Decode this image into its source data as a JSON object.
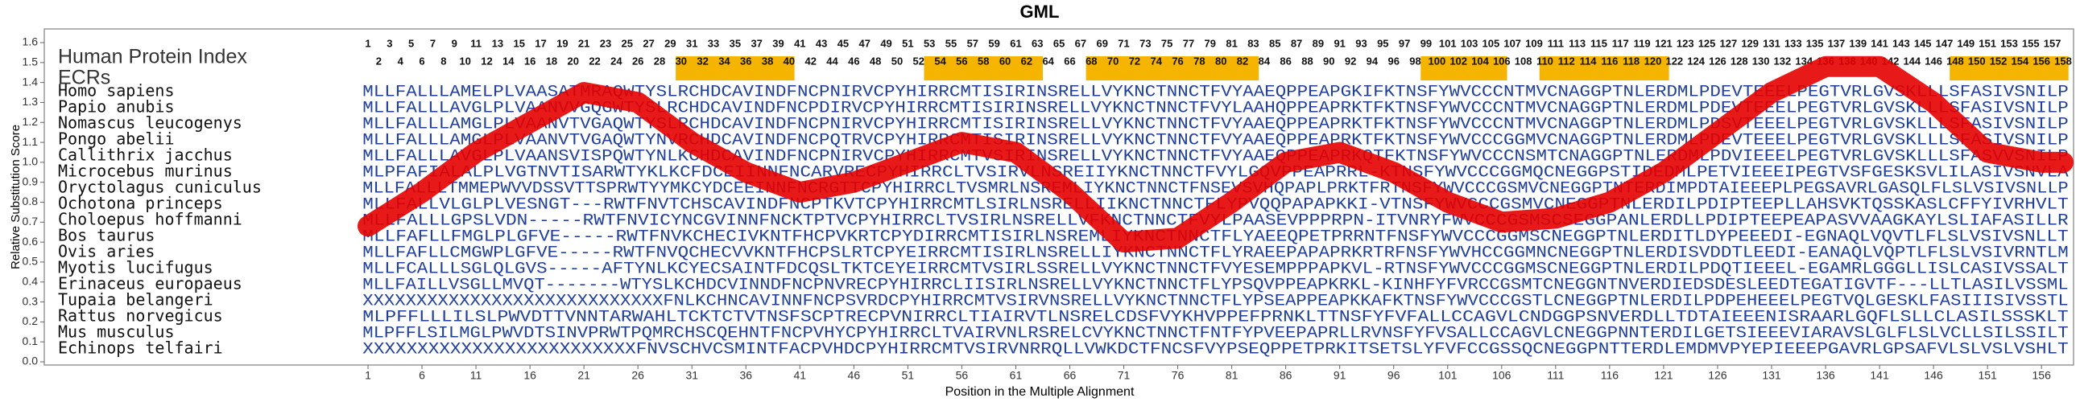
{
  "chart_data": {
    "type": "line",
    "title": "GML",
    "xlabel": "Position in the Multiple Alignment",
    "ylabel": "Relative Substitution Score",
    "index_label": "Human Protein Index",
    "ecr_label": "ECRs",
    "color": "#e60000",
    "ecr_color": "#f5b400",
    "sequence_color": "#1f3f99",
    "xlim": [
      1,
      158
    ],
    "ylim": [
      0,
      1.6
    ],
    "xticks": [
      1,
      6,
      11,
      16,
      21,
      26,
      31,
      36,
      41,
      46,
      51,
      56,
      61,
      66,
      71,
      76,
      81,
      86,
      91,
      96,
      101,
      106,
      111,
      116,
      121,
      126,
      131,
      136,
      141,
      146,
      151,
      156
    ],
    "yticks": [
      {
        "value": 0,
        "label": "0.0"
      },
      0.1,
      0.2,
      0.3,
      0.4,
      0.5,
      0.6,
      0.7,
      0.8,
      0.9,
      {
        "value": 1,
        "label": "1.0"
      },
      1.1,
      1.2,
      1.3,
      1.4,
      1.5,
      1.6
    ],
    "x": [
      1,
      6,
      11,
      16,
      21,
      26,
      31,
      36,
      41,
      46,
      51,
      56,
      61,
      66,
      71,
      76,
      81,
      86,
      91,
      96,
      101,
      106,
      111,
      116,
      121,
      126,
      131,
      136,
      141,
      146,
      151,
      156,
      158
    ],
    "values": [
      0.68,
      0.85,
      1.05,
      1.2,
      1.35,
      1.3,
      1.1,
      0.95,
      0.85,
      0.9,
      1.0,
      1.1,
      1.05,
      0.85,
      0.6,
      0.62,
      0.8,
      1.0,
      1.05,
      0.95,
      0.8,
      0.7,
      0.72,
      0.8,
      0.95,
      1.15,
      1.35,
      1.48,
      1.48,
      1.3,
      1.05,
      1.0,
      1.0
    ],
    "ecrs": [
      [
        30,
        40
      ],
      [
        53,
        63
      ],
      [
        68,
        83
      ],
      [
        99,
        106
      ],
      [
        110,
        121
      ],
      [
        148,
        158
      ]
    ],
    "column_numbers": [
      1,
      2,
      3,
      4,
      5,
      6,
      7,
      8,
      9,
      10,
      11,
      12,
      13,
      14,
      15,
      16,
      17,
      18,
      19,
      20,
      21,
      22,
      23,
      24,
      25,
      26,
      27,
      28,
      29,
      30,
      31,
      32,
      33,
      34,
      35,
      36,
      37,
      38,
      39,
      40,
      41,
      42,
      43,
      44,
      45,
      46,
      47,
      48,
      49,
      50,
      51,
      52,
      53,
      54,
      55,
      56,
      57,
      58,
      59,
      60,
      61,
      62,
      63,
      64,
      65,
      66,
      67,
      68,
      69,
      70,
      71,
      72,
      73,
      74,
      75,
      76,
      77,
      78,
      79,
      80,
      81,
      82,
      83,
      84,
      85,
      86,
      87,
      88,
      89,
      90,
      91,
      92,
      93,
      94,
      95,
      96,
      97,
      98,
      99,
      100,
      101,
      102,
      103,
      104,
      105,
      106,
      107,
      108,
      109,
      110,
      111,
      112,
      113,
      114,
      115,
      116,
      117,
      118,
      119,
      120,
      121,
      122,
      123,
      124,
      125,
      126,
      127,
      128,
      129,
      130,
      131,
      132,
      133,
      134,
      135,
      136,
      137,
      138,
      139,
      140,
      141,
      142,
      143,
      144,
      145,
      146,
      147,
      148,
      149,
      150,
      151,
      152,
      153,
      154,
      155,
      156,
      157,
      158
    ],
    "alignment": [
      {
        "species": "Homo sapiens",
        "sequence": "MLLFALLLAMELPLVAASATMRAQWTYSLRCHDCAVINDFNCPNIRVCPYHIRRCMTISIRINSRELLVYKNCTNNCTFVYAAEQPPEAPGKIFKTNSFYWVCCCNTMVCNAGGPTNLERDMLPDEVTEEELPEGTVRLGVSKLLLSFASIVSNILP"
      },
      {
        "species": "Papio anubis",
        "sequence": "MLLFALLLAVGLPLVAANVVGQGWTYSLRCHDCAVINDFNCPDIRVCPYHIRRCMTISIRINSRELLVYKNCTNNCTFVYLAAHQPPEAPRKTFKTNSFYWVCCCNTMVCNAGGPTNLERDMLPDEVTEEELPEGTVRLGVSKLLLSFASIVSNILP"
      },
      {
        "species": "Nomascus leucogenys",
        "sequence": "MLLFALLLAMGLPLVAANVTVGAQWTYSLRCHDCAVINDFNCPNIRVCPYHIRRCMTISIRINSRELLVYKNCTNNCTFVYAAEQPPEAPRKTFKTNSFYWVCCCNTMVCNAGGPTNLERDMLPDSVTEEELPEGTVRLGVSKLLLSFASIVSNILP"
      },
      {
        "species": "Pongo abelii",
        "sequence": "MLLFALLLAMGLPLVAANVTVGAQWTYNVRCHDCAVINDFNCPQTRVCPYHIRRCMTISIRINSRELLVYKNCTNNCTFVYAAEQPPEAPRKTFKTNSFYWVCCCGGMVCNAGGPTNLERDMLPDEVTEEELPEGTVRLGVSKLLLSFASIVSNILP"
      },
      {
        "species": "Callithrix jacchus",
        "sequence": "MLLFALLLAVGLPLVAANSVISPQWTYNLKCHDCAVINDFNCPNIRVCPYHIRRCMTVSIRINSRELLVYKNCTNNCTFVYAAEQPPEAPRKQTFKTNSFYWVCCCNSMTCNAGGPTNLERDMLPDVIEEELPEGTVRLGVSKLLLSFASVVSNILP"
      },
      {
        "species": "Microcebus murinus",
        "sequence": "MLPFAFIALALPLVGTNVTISARWTYKLKCFDCEIINNFNCARVRECPYHIRRCLTVSIRVLNSREIIYKNCTNNCTFVYLGQVPPEAPRRL-KTNSFYWVCCCGGMQCNEGGPSTIDEDMLPETVIEEEIPEGTVSFGESKSVLILASIVSNVLA"
      },
      {
        "species": "Oryctolagus cuniculus",
        "sequence": "MLLFALLLTMMEPWVVDSSVTTSPRWTYYMKCYDCEEINNFNCRGTTCPYHIRRCLTVSMRLNSREMLIYKNCTNNCTFNSEVSVHQPAPLPRKTFRTNSFYWVCCCGSMVCNEGGPTNTERDIMPDTAIEEEPLPEGSAVRLGASQLFLSLVSIVSNLLP"
      },
      {
        "species": "Ochotona princeps",
        "sequence": "MLLFALLVLGLPLVESNGT---RWTFNVTCHSCAVINDFNCPTKVTCPYHIRRCMTLSIRLNSRELLIIKNCTNNCTFLYPVQQPAPAPKKI-VTNSFYWVCCCGSMVCNEGGPTNLERDILPDIPTEEPLLAHSVKTQSSKASLCFFYIVRHVLT"
      },
      {
        "species": "Choloepus hoffmanni",
        "sequence": "MLLFALLLGPSLVDN-----RWTFNVICYNCGVINNFNCKTPTVCPYHIRRCLTVSIRLNSRELLVFKNCTNNCTFVYLPAASEVPPPRPN-ITVNRYFWVCCCGSMSCSEGGPANLERDLLPDIPTEEPEAPASVVAAGKAYLSLIAFASILLR"
      },
      {
        "species": "Bos taurus",
        "sequence": "MLLFAFLLFMGLPLGFVE-----RWTFNVKCHECIVKNTFHCPVKRTCPYDIRRCMTISIRLNSREMLIYKNCTNNCTFLYAEEQPETPRRNTFNSFYWVCCCGGMSCNEGGPTNLERDITLDYPEEEDI-EGNAQLVQVTLFLSLVSIVSNLLT"
      },
      {
        "species": "Ovis aries",
        "sequence": "MLLFAFLLCMGWPLGFVE-----RWTFNVQCHECVVKNTFHCPSLRTCPYEIRRCMTISIRLNSRELLIYKNCTNNCTFLYRAEEPAPAPRKRTRFNSFYWVHCCGGMNCNEGGPTNLERDISVDDTLEEDI-EANAQLVQPTLFLSLVSIVRNTLM"
      },
      {
        "species": "Myotis lucifugus",
        "sequence": "MLLFCALLLSGLQLGVS-----AFTYNLKCYECSAINTFDCQSLTKTCEYEIRRCMTVSIRLSSRELLVYKNCTNNCTFVYESEMPPPAPKVL-RTNSFYWVCCCGGMSCNEGGPTNLERDILPDQTIEEEL-EGAMRLGGGLLISLCASIVSSALT"
      },
      {
        "species": "Erinaceus europaeus",
        "sequence": "MLLFAILLVSGLLMVQT-------WTYSLKCHDCVINNDFNCPNVRECPYHIRRCLIISIRLNSRELLVYKNCTNNCTFLYPSQVPPEAPKRKL-KINHFYFVRCCGSMTCNEGGNTNVERDIEDSDESLEEDTEGATIGVTF---LLTLASILVSSML"
      },
      {
        "species": "Tupaia belangeri",
        "sequence": "XXXXXXXXXXXXXXXXXXXXXXXXXXXXFNLKCHNCAVINNFNCPSVRDCPYHIRRCMTVSIRVNSRELLVYKNCTNNCTFLYPSEAPPEAPKKAFKTNSFYWVCCCGSTLCNEGGPTNLERDILPDPEHEEELPEGTVQLGESKLFASIIISIVSSTL"
      },
      {
        "species": "Rattus norvegicus",
        "sequence": "MLPFFLLLILSLPWVDTTVNNTARWAHLTCKTCTVTNSFSCPTRECPVNIRRCLTIAIRVTLNSRELCDSFVYKHVPPEFPRNKLTTNSFYFVFALLCCAGVLCNDGGPSNVERDLLTDTAIEEENISRAARLGQFLSLLCLASILSSSKLT"
      },
      {
        "species": "Mus musculus",
        "sequence": "MLPFFLSILMGLPWVDTSINVPRWTPQMRCHSCQEHNTFNCPVHYCPYHIRRCLTVAIRVNLRSRELCVYKNCTNNCTFNTFYPVEEPAPRLLRVNSFYFVSALLCCAGVLCNEGGPNNTERDILGETSIEEEVIARAVSLGLFLSLVCLLSILSSILT"
      },
      {
        "species": "Echinops telfairi",
        "sequence": "XXXXXXXXXXXXXXXXXXXXXXXXXFNVSCHVCSMINTFACPVHDCPYHIRRCMTVSIRVNRRQLLVWKDCTFNCSFVYPSEQPPETPRKITSETSLYFVFCCGSSQCNEGGPNTTERDLEMDMVPYEPIEEEPGAVRLGPSAFVLSLVSLVSHLT"
      }
    ]
  }
}
